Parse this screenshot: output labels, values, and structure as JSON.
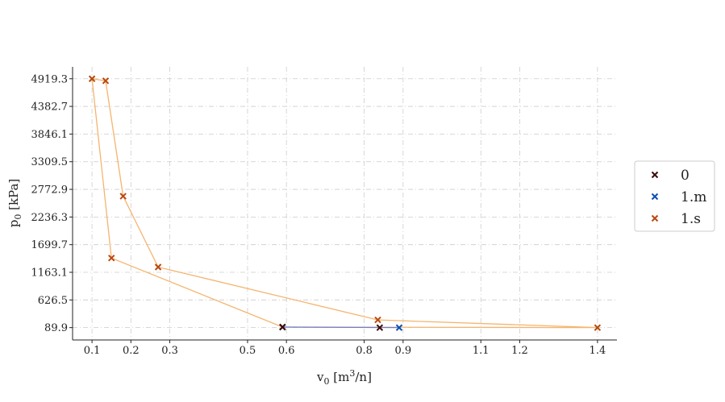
{
  "chart_data": {
    "type": "scatter",
    "title": "",
    "xlabel": "v",
    "xlabel_sub": "0",
    "xlabel_unit_pre": " [m",
    "xlabel_unit_sup": "3",
    "xlabel_unit_post": "/n]",
    "ylabel": "p",
    "ylabel_sub": "0",
    "ylabel_unit": " [kPa]",
    "xlim": [
      0.05,
      1.45
    ],
    "ylim": [
      -150,
      5150
    ],
    "xticks": [
      0.1,
      0.2,
      0.3,
      0.5,
      0.6,
      0.8,
      0.9,
      1.1,
      1.2,
      1.4
    ],
    "xtick_labels": [
      "0.1",
      "0.2",
      "0.3",
      "0.5",
      "0.6",
      "0.8",
      "0.9",
      "1.1",
      "1.2",
      "1.4"
    ],
    "yticks": [
      89.9,
      626.5,
      1163.1,
      1699.7,
      2236.3,
      2772.9,
      3309.5,
      3846.1,
      4382.7,
      4919.3
    ],
    "ytick_labels": [
      "89.9",
      "626.5",
      "1163.1",
      "1699.7",
      "2236.3",
      "2772.9",
      "3309.5",
      "3846.1",
      "4382.7",
      "4919.3"
    ],
    "grid": true,
    "legend_position": "right",
    "series": [
      {
        "name": "0",
        "color": "#3d0b0b",
        "line_color": null,
        "points": [
          [
            0.59,
            100
          ],
          [
            0.84,
            90
          ]
        ]
      },
      {
        "name": "1.m",
        "color": "#0b4fb0",
        "line_color": "#6b7fd0",
        "points": [
          [
            0.59,
            100
          ],
          [
            0.89,
            90
          ]
        ]
      },
      {
        "name": "1.s",
        "color": "#b84a0f",
        "line_color": "#f5b46e",
        "points": [
          [
            0.1,
            4919.3
          ],
          [
            0.135,
            4880
          ],
          [
            0.18,
            2640
          ],
          [
            0.27,
            1265
          ],
          [
            0.835,
            240
          ],
          [
            1.4,
            90
          ],
          [
            0.59,
            100
          ],
          [
            0.15,
            1440
          ],
          [
            0.1,
            4919.3
          ]
        ]
      }
    ],
    "legend_entries": [
      "0",
      "1.m",
      "1.s"
    ]
  }
}
